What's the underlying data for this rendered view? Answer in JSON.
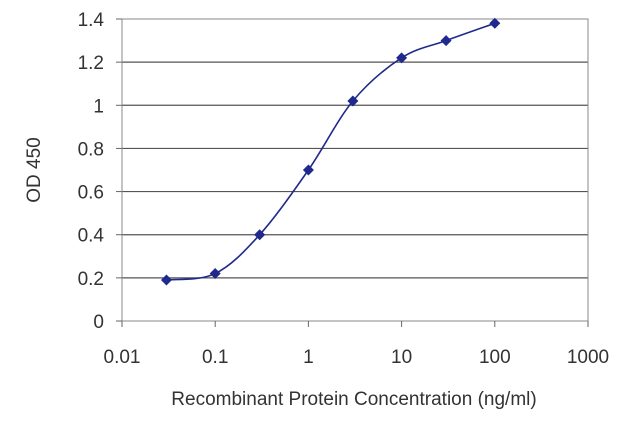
{
  "chart_data": {
    "type": "line",
    "xlabel": "Recombinant Protein Concentration (ng/ml)",
    "ylabel": "OD 450",
    "x_scale": "log",
    "xlim": [
      0.01,
      1000
    ],
    "ylim": [
      0,
      1.4
    ],
    "x_ticks": [
      0.01,
      0.1,
      1,
      10,
      100,
      1000
    ],
    "x_tick_labels": [
      "0.01",
      "0.1",
      "1",
      "10",
      "100",
      "1000"
    ],
    "y_ticks": [
      0,
      0.2,
      0.4,
      0.6,
      0.8,
      1,
      1.2,
      1.4
    ],
    "y_tick_labels": [
      "0",
      "0.2",
      "0.4",
      "0.6",
      "0.8",
      "1",
      "1.2",
      "1.4"
    ],
    "grid": "horizontal",
    "legend": "none",
    "series": [
      {
        "x": [
          0.03,
          0.1,
          0.3,
          1,
          3,
          10,
          30,
          100
        ],
        "y": [
          0.19,
          0.22,
          0.4,
          0.7,
          1.02,
          1.22,
          1.3,
          1.38
        ],
        "color": "#1f2a8c",
        "marker": "diamond"
      }
    ]
  }
}
